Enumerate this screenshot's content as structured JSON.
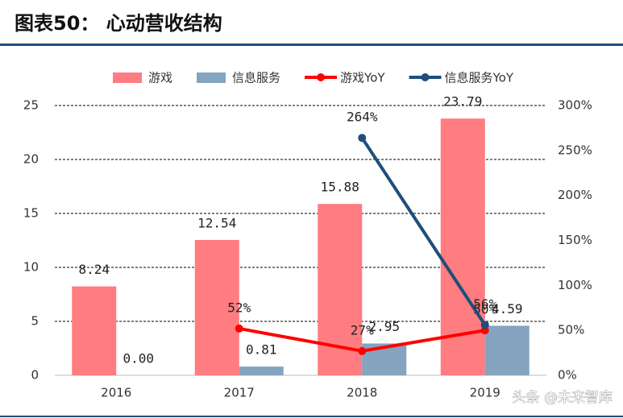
{
  "header": {
    "title": "图表50：  心动营收结构"
  },
  "chart_data": {
    "type": "bar",
    "categories": [
      "2016",
      "2017",
      "2018",
      "2019"
    ],
    "series": [
      {
        "name": "游戏",
        "type": "bar",
        "color": "#ff7c80",
        "values": [
          8.24,
          12.54,
          15.88,
          23.79
        ]
      },
      {
        "name": "信息服务",
        "type": "bar",
        "color": "#84a4bf",
        "values": [
          0,
          0.81,
          2.95,
          4.59
        ],
        "value_labels": [
          "0.00",
          "0.81",
          "2.95",
          "4.59"
        ]
      },
      {
        "name": "游戏YoY",
        "type": "line",
        "axis": "y2",
        "color": "#ff0000",
        "values": [
          null,
          52,
          27,
          50
        ],
        "value_labels": [
          null,
          "52%",
          "27%",
          "50%"
        ]
      },
      {
        "name": "信息服务YoY",
        "type": "line",
        "axis": "y2",
        "color": "#1f4e79",
        "values": [
          null,
          null,
          264,
          56
        ],
        "value_labels": [
          null,
          null,
          "264%",
          "56%"
        ]
      }
    ],
    "ylim": [
      0,
      25
    ],
    "yticks": [
      0,
      5,
      10,
      15,
      20,
      25
    ],
    "y2lim": [
      0,
      300
    ],
    "y2ticks": [
      {
        "value": 0,
        "label": "0%"
      },
      {
        "value": 50,
        "label": "50%"
      },
      {
        "value": 100,
        "label": "100%"
      },
      {
        "value": 150,
        "label": "150%"
      },
      {
        "value": 200,
        "label": "200%"
      },
      {
        "value": 250,
        "label": "250%"
      },
      {
        "value": 300,
        "label": "300%"
      }
    ],
    "grid": true,
    "legend": "top"
  },
  "watermark": "头条 @未来智库"
}
